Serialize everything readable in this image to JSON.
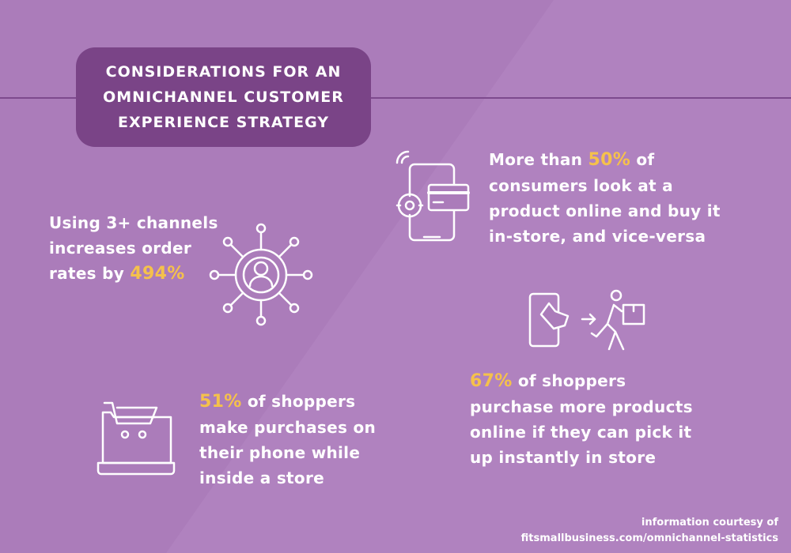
{
  "colors": {
    "background": "#ab7cba",
    "title_box": "#7a4487",
    "highlight": "#f5c14b",
    "text": "#ffffff",
    "rule": "#7d4a8e"
  },
  "title": {
    "lines": [
      "CONSIDERATIONS FOR AN",
      "OMNICHANNEL CUSTOMER",
      "EXPERIENCE STRATEGY"
    ]
  },
  "stats": {
    "online_offline": {
      "icon": "smartphone-card-gear-icon",
      "prefix": "More than ",
      "highlight": "50%",
      "suffix": " of",
      "lines": [
        "consumers look at a",
        "product online and buy it",
        "in-store, and vice-versa"
      ]
    },
    "channels": {
      "icon": "network-user-icon",
      "lines": [
        "Using 3+ channels",
        "increases order"
      ],
      "prefix": "rates by ",
      "highlight": "494%"
    },
    "pickup": {
      "icon": "phone-to-delivery-icon",
      "highlight": "67%",
      "suffix": " of shoppers",
      "lines": [
        "purchase more products",
        "online if they can pick it",
        "up instantly in store"
      ]
    },
    "in_store_phone": {
      "icon": "laptop-cart-icon",
      "highlight": "51%",
      "suffix": " of shoppers",
      "lines": [
        "make purchases on",
        "their phone while",
        "inside a store"
      ]
    }
  },
  "footer": {
    "line1": "information courtesy of",
    "line2": "fitsmallbusiness.com/omnichannel-statistics"
  }
}
